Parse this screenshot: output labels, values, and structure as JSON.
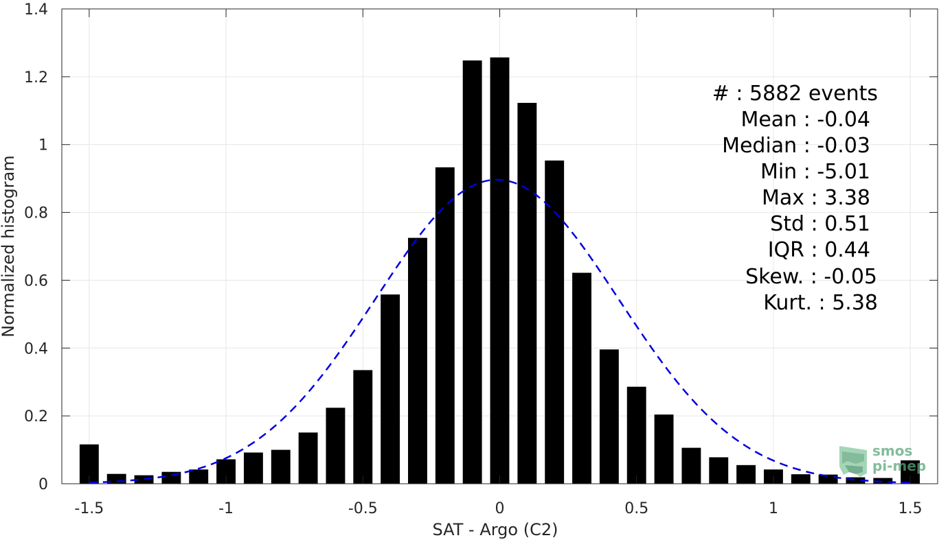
{
  "chart_data": {
    "type": "bar",
    "xlabel": "SAT - Argo (C2)",
    "ylabel": "Normalized histogram",
    "xlim": [
      -1.6,
      1.6
    ],
    "ylim": [
      0,
      1.4
    ],
    "grid": true,
    "x_ticks": [
      -1.5,
      -1,
      -0.5,
      0,
      0.5,
      1,
      1.5
    ],
    "x_tick_labels": [
      "-1.5",
      "-1",
      "-0.5",
      "0",
      "0.5",
      "1",
      "1.5"
    ],
    "y_ticks": [
      0,
      0.2,
      0.4,
      0.6,
      0.8,
      1,
      1.2,
      1.4
    ],
    "y_tick_labels": [
      "0",
      "0.2",
      "0.4",
      "0.6",
      "0.8",
      "1",
      "1.2",
      "1.4"
    ],
    "bar_width": 0.07,
    "series": [
      {
        "type": "bar",
        "color": "#000000",
        "x": [
          -1.5,
          -1.4,
          -1.3,
          -1.2,
          -1.1,
          -1.0,
          -0.9,
          -0.8,
          -0.7,
          -0.6,
          -0.5,
          -0.4,
          -0.3,
          -0.2,
          -0.1,
          0.0,
          0.1,
          0.2,
          0.3,
          0.4,
          0.5,
          0.6,
          0.7,
          0.8,
          0.9,
          1.0,
          1.1,
          1.2,
          1.3,
          1.4,
          1.5
        ],
        "values": [
          0.116,
          0.029,
          0.025,
          0.035,
          0.042,
          0.072,
          0.092,
          0.1,
          0.151,
          0.224,
          0.335,
          0.558,
          0.725,
          0.933,
          1.248,
          1.257,
          1.123,
          0.953,
          0.622,
          0.396,
          0.286,
          0.204,
          0.106,
          0.078,
          0.055,
          0.042,
          0.028,
          0.027,
          0.019,
          0.017,
          0.069
        ]
      },
      {
        "type": "line",
        "style": "dashed",
        "color": "#0000e0",
        "gaussian": {
          "mean": -0.01,
          "std": 0.445,
          "x_range": [
            -1.5,
            1.5
          ]
        }
      }
    ],
    "annotation_lines": [
      "#  : 5882 events",
      "Mean : -0.04",
      "Median : -0.03",
      "Min : -5.01",
      "Max : 3.38",
      "Std : 0.51",
      "IQR : 0.44",
      "Skew. : -0.05",
      "Kurt. : 5.38"
    ]
  },
  "logo": {
    "line1": "smos",
    "line2": "pi-mep",
    "color": "#5aa67a"
  }
}
